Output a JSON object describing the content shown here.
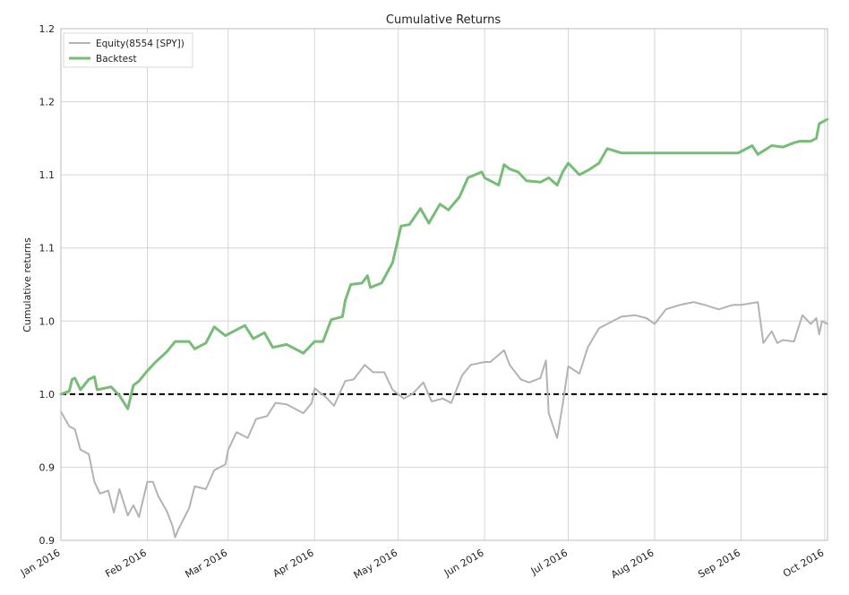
{
  "chart_data": {
    "type": "line",
    "title": "Cumulative Returns",
    "ylabel": "Cumulative returns",
    "xlabel": "",
    "x_tick_labels": [
      "Jan 2016",
      "Feb 2016",
      "Mar 2016",
      "Apr 2016",
      "May 2016",
      "Jun 2016",
      "Jul 2016",
      "Aug 2016",
      "Sep 2016",
      "Oct 2016"
    ],
    "x_tick_dates": [
      "2016-01-01",
      "2016-02-01",
      "2016-03-01",
      "2016-04-01",
      "2016-05-01",
      "2016-06-01",
      "2016-07-01",
      "2016-08-01",
      "2016-09-01",
      "2016-10-01"
    ],
    "xlim": [
      "2016-01-01",
      "2016-10-02"
    ],
    "y_tick_values": [
      0.9,
      0.95,
      1.0,
      1.05,
      1.1,
      1.15,
      1.2,
      1.25
    ],
    "y_tick_labels": [
      "0.9",
      "0.9",
      "1.0",
      "1.0",
      "1.1",
      "1.1",
      "1.2",
      "1.2"
    ],
    "ylim": [
      0.9,
      1.25
    ],
    "grid": true,
    "legend_position": "top-left",
    "baseline": {
      "y": 1.0,
      "style": "dashed",
      "color": "#000000"
    },
    "series": [
      {
        "name": "Equity(8554 [SPY])",
        "color": "#b3b3b3",
        "points": [
          [
            "2016-01-01",
            0.988
          ],
          [
            "2016-01-04",
            0.978
          ],
          [
            "2016-01-06",
            0.976
          ],
          [
            "2016-01-08",
            0.962
          ],
          [
            "2016-01-11",
            0.959
          ],
          [
            "2016-01-13",
            0.94
          ],
          [
            "2016-01-15",
            0.932
          ],
          [
            "2016-01-18",
            0.934
          ],
          [
            "2016-01-20",
            0.919
          ],
          [
            "2016-01-22",
            0.935
          ],
          [
            "2016-01-25",
            0.917
          ],
          [
            "2016-01-27",
            0.924
          ],
          [
            "2016-01-29",
            0.916
          ],
          [
            "2016-02-01",
            0.94
          ],
          [
            "2016-02-03",
            0.94
          ],
          [
            "2016-02-05",
            0.93
          ],
          [
            "2016-02-08",
            0.92
          ],
          [
            "2016-02-10",
            0.91
          ],
          [
            "2016-02-11",
            0.902
          ],
          [
            "2016-02-12",
            0.907
          ],
          [
            "2016-02-16",
            0.922
          ],
          [
            "2016-02-18",
            0.937
          ],
          [
            "2016-02-22",
            0.935
          ],
          [
            "2016-02-25",
            0.948
          ],
          [
            "2016-02-29",
            0.952
          ],
          [
            "2016-03-01",
            0.962
          ],
          [
            "2016-03-04",
            0.974
          ],
          [
            "2016-03-08",
            0.97
          ],
          [
            "2016-03-11",
            0.983
          ],
          [
            "2016-03-15",
            0.985
          ],
          [
            "2016-03-18",
            0.994
          ],
          [
            "2016-03-22",
            0.993
          ],
          [
            "2016-03-28",
            0.987
          ],
          [
            "2016-03-31",
            0.994
          ],
          [
            "2016-04-01",
            1.004
          ],
          [
            "2016-04-05",
            0.998
          ],
          [
            "2016-04-08",
            0.992
          ],
          [
            "2016-04-12",
            1.009
          ],
          [
            "2016-04-15",
            1.01
          ],
          [
            "2016-04-19",
            1.02
          ],
          [
            "2016-04-22",
            1.015
          ],
          [
            "2016-04-26",
            1.015
          ],
          [
            "2016-04-29",
            1.003
          ],
          [
            "2016-05-03",
            0.997
          ],
          [
            "2016-05-06",
            1.0
          ],
          [
            "2016-05-10",
            1.008
          ],
          [
            "2016-05-13",
            0.995
          ],
          [
            "2016-05-17",
            0.997
          ],
          [
            "2016-05-20",
            0.994
          ],
          [
            "2016-05-24",
            1.013
          ],
          [
            "2016-05-27",
            1.02
          ],
          [
            "2016-06-01",
            1.022
          ],
          [
            "2016-06-03",
            1.022
          ],
          [
            "2016-06-08",
            1.03
          ],
          [
            "2016-06-10",
            1.02
          ],
          [
            "2016-06-14",
            1.01
          ],
          [
            "2016-06-17",
            1.008
          ],
          [
            "2016-06-21",
            1.011
          ],
          [
            "2016-06-23",
            1.023
          ],
          [
            "2016-06-24",
            0.987
          ],
          [
            "2016-06-27",
            0.97
          ],
          [
            "2016-06-29",
            0.993
          ],
          [
            "2016-07-01",
            1.019
          ],
          [
            "2016-07-05",
            1.014
          ],
          [
            "2016-07-08",
            1.032
          ],
          [
            "2016-07-12",
            1.045
          ],
          [
            "2016-07-15",
            1.048
          ],
          [
            "2016-07-20",
            1.053
          ],
          [
            "2016-07-25",
            1.054
          ],
          [
            "2016-07-29",
            1.052
          ],
          [
            "2016-08-01",
            1.048
          ],
          [
            "2016-08-05",
            1.058
          ],
          [
            "2016-08-10",
            1.061
          ],
          [
            "2016-08-15",
            1.063
          ],
          [
            "2016-08-19",
            1.061
          ],
          [
            "2016-08-24",
            1.058
          ],
          [
            "2016-08-29",
            1.061
          ],
          [
            "2016-09-01",
            1.061
          ],
          [
            "2016-09-07",
            1.063
          ],
          [
            "2016-09-09",
            1.035
          ],
          [
            "2016-09-12",
            1.043
          ],
          [
            "2016-09-14",
            1.035
          ],
          [
            "2016-09-16",
            1.037
          ],
          [
            "2016-09-20",
            1.036
          ],
          [
            "2016-09-23",
            1.054
          ],
          [
            "2016-09-26",
            1.048
          ],
          [
            "2016-09-28",
            1.052
          ],
          [
            "2016-09-29",
            1.041
          ],
          [
            "2016-09-30",
            1.05
          ],
          [
            "2016-10-02",
            1.048
          ]
        ]
      },
      {
        "name": "Backtest",
        "color": "#77bd77",
        "points": [
          [
            "2016-01-01",
            1.0
          ],
          [
            "2016-01-04",
            1.002
          ],
          [
            "2016-01-05",
            1.01
          ],
          [
            "2016-01-06",
            1.011
          ],
          [
            "2016-01-08",
            1.003
          ],
          [
            "2016-01-11",
            1.01
          ],
          [
            "2016-01-13",
            1.012
          ],
          [
            "2016-01-14",
            1.003
          ],
          [
            "2016-01-19",
            1.005
          ],
          [
            "2016-01-22",
            0.999
          ],
          [
            "2016-01-25",
            0.99
          ],
          [
            "2016-01-27",
            1.006
          ],
          [
            "2016-01-29",
            1.009
          ],
          [
            "2016-02-01",
            1.016
          ],
          [
            "2016-02-04",
            1.022
          ],
          [
            "2016-02-08",
            1.029
          ],
          [
            "2016-02-11",
            1.036
          ],
          [
            "2016-02-16",
            1.036
          ],
          [
            "2016-02-18",
            1.031
          ],
          [
            "2016-02-22",
            1.035
          ],
          [
            "2016-02-25",
            1.046
          ],
          [
            "2016-02-29",
            1.04
          ],
          [
            "2016-03-02",
            1.042
          ],
          [
            "2016-03-07",
            1.047
          ],
          [
            "2016-03-10",
            1.038
          ],
          [
            "2016-03-14",
            1.042
          ],
          [
            "2016-03-17",
            1.032
          ],
          [
            "2016-03-22",
            1.034
          ],
          [
            "2016-03-28",
            1.028
          ],
          [
            "2016-03-31",
            1.034
          ],
          [
            "2016-04-01",
            1.036
          ],
          [
            "2016-04-04",
            1.036
          ],
          [
            "2016-04-07",
            1.051
          ],
          [
            "2016-04-11",
            1.053
          ],
          [
            "2016-04-12",
            1.064
          ],
          [
            "2016-04-14",
            1.075
          ],
          [
            "2016-04-18",
            1.076
          ],
          [
            "2016-04-20",
            1.081
          ],
          [
            "2016-04-21",
            1.073
          ],
          [
            "2016-04-25",
            1.076
          ],
          [
            "2016-04-29",
            1.09
          ],
          [
            "2016-05-02",
            1.115
          ],
          [
            "2016-05-05",
            1.116
          ],
          [
            "2016-05-09",
            1.127
          ],
          [
            "2016-05-12",
            1.117
          ],
          [
            "2016-05-16",
            1.13
          ],
          [
            "2016-05-19",
            1.126
          ],
          [
            "2016-05-23",
            1.135
          ],
          [
            "2016-05-26",
            1.148
          ],
          [
            "2016-05-31",
            1.152
          ],
          [
            "2016-06-01",
            1.148
          ],
          [
            "2016-06-06",
            1.143
          ],
          [
            "2016-06-08",
            1.157
          ],
          [
            "2016-06-10",
            1.154
          ],
          [
            "2016-06-13",
            1.152
          ],
          [
            "2016-06-16",
            1.146
          ],
          [
            "2016-06-21",
            1.145
          ],
          [
            "2016-06-24",
            1.148
          ],
          [
            "2016-06-27",
            1.143
          ],
          [
            "2016-06-29",
            1.152
          ],
          [
            "2016-07-01",
            1.158
          ],
          [
            "2016-07-05",
            1.15
          ],
          [
            "2016-07-08",
            1.153
          ],
          [
            "2016-07-12",
            1.158
          ],
          [
            "2016-07-15",
            1.168
          ],
          [
            "2016-07-20",
            1.165
          ],
          [
            "2016-08-01",
            1.165
          ],
          [
            "2016-08-31",
            1.165
          ],
          [
            "2016-09-01",
            1.166
          ],
          [
            "2016-09-05",
            1.17
          ],
          [
            "2016-09-07",
            1.164
          ],
          [
            "2016-09-12",
            1.17
          ],
          [
            "2016-09-16",
            1.169
          ],
          [
            "2016-09-20",
            1.172
          ],
          [
            "2016-09-22",
            1.173
          ],
          [
            "2016-09-26",
            1.173
          ],
          [
            "2016-09-28",
            1.175
          ],
          [
            "2016-09-29",
            1.185
          ],
          [
            "2016-10-02",
            1.188
          ]
        ]
      }
    ]
  }
}
